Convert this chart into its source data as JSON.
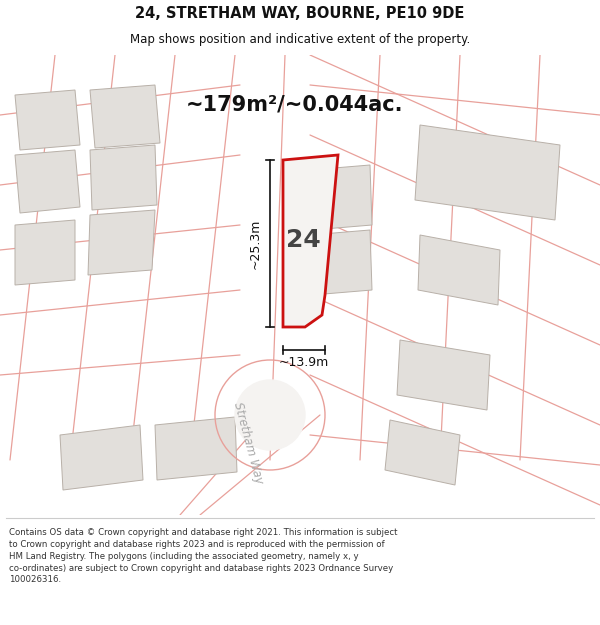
{
  "title_line1": "24, STRETHAM WAY, BOURNE, PE10 9DE",
  "title_line2": "Map shows position and indicative extent of the property.",
  "area_text": "~179m²/~0.044ac.",
  "property_number": "24",
  "dim_width": "~13.9m",
  "dim_height": "~25.3m",
  "street_name": "Stretham Way",
  "footer_line1": "Contains OS data © Crown copyright and database right 2021. This information is subject",
  "footer_line2": "to Crown copyright and database rights 2023 and is reproduced with the permission of",
  "footer_line3": "HM Land Registry. The polygons (including the associated geometry, namely x, y",
  "footer_line4": "co-ordinates) are subject to Crown copyright and database rights 2023 Ordnance Survey",
  "footer_line5": "100026316.",
  "bg_map": "#f5f3f1",
  "road_color": "#e8a09a",
  "plot_fill": "#e2dfdb",
  "plot_edge": "#b8b0a8",
  "prop_fill": "#f5f3f1",
  "prop_edge": "#cc1111",
  "dim_color": "#111111",
  "street_color": "#aaaaaa",
  "title_color": "#111111",
  "footer_color": "#333333",
  "white": "#ffffff"
}
